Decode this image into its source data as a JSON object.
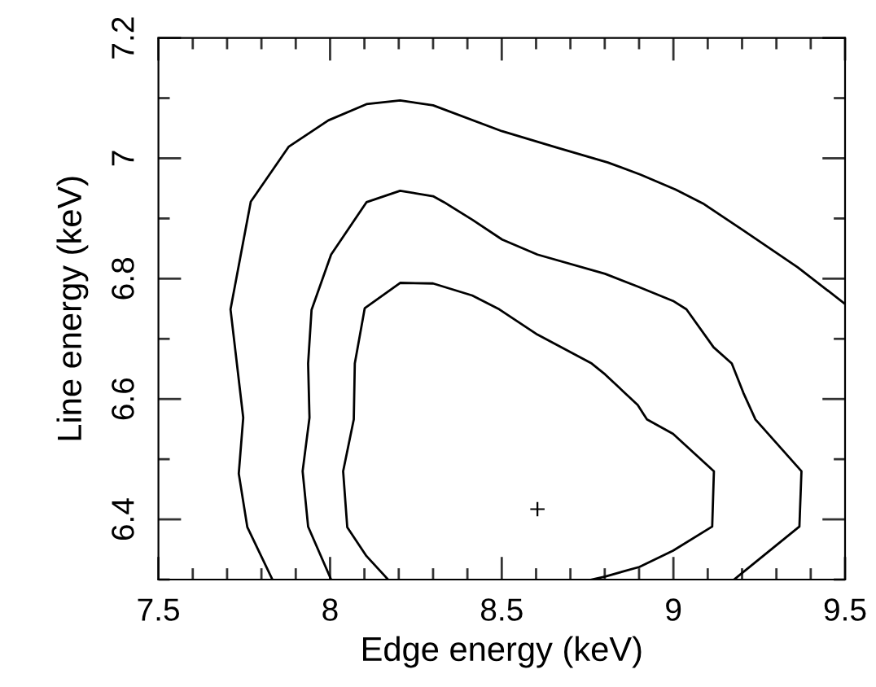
{
  "chart_data": {
    "type": "line",
    "xlabel": "Edge energy (keV)",
    "ylabel": "Line energy (keV)",
    "xlim": [
      7.5,
      9.5
    ],
    "ylim": [
      6.3,
      7.2
    ],
    "xticks": [
      7.5,
      {
        "value": 7.6,
        "label": null
      },
      {
        "value": 7.7,
        "label": null
      },
      {
        "value": 7.8,
        "label": null
      },
      {
        "value": 7.9,
        "label": null
      },
      8,
      {
        "value": 8.1,
        "label": null
      },
      {
        "value": 8.2,
        "label": null
      },
      {
        "value": 8.3,
        "label": null
      },
      {
        "value": 8.4,
        "label": null
      },
      8.5,
      {
        "value": 8.6,
        "label": null
      },
      {
        "value": 8.7,
        "label": null
      },
      {
        "value": 8.8,
        "label": null
      },
      {
        "value": 8.9,
        "label": null
      },
      9,
      {
        "value": 9.1,
        "label": null
      },
      {
        "value": 9.2,
        "label": null
      },
      {
        "value": 9.3,
        "label": null
      },
      {
        "value": 9.4,
        "label": null
      },
      9.5
    ],
    "yticks": [
      {
        "value": 6.3,
        "label": null
      },
      6.4,
      {
        "value": 6.5,
        "label": null
      },
      6.6,
      {
        "value": 6.7,
        "label": null
      },
      6.8,
      {
        "value": 6.9,
        "label": null
      },
      7,
      {
        "value": 7.1,
        "label": null
      },
      7.2
    ],
    "grid": false,
    "legend": false,
    "series": [
      {
        "color": "#000000",
        "x": [
          7.832,
          7.759,
          7.734,
          7.747,
          7.71,
          7.769,
          7.879,
          7.995,
          8.106,
          8.204,
          8.3,
          8.501,
          8.659,
          8.809,
          8.904,
          9.007,
          9.086,
          9.204,
          9.362,
          9.5
        ],
        "values": [
          6.3,
          6.387,
          6.476,
          6.569,
          6.749,
          6.928,
          7.019,
          7.063,
          7.09,
          7.096,
          7.088,
          7.045,
          7.018,
          6.993,
          6.973,
          6.948,
          6.925,
          6.88,
          6.819,
          6.758
        ]
      },
      {
        "color": "#000000",
        "x": [
          8.003,
          7.936,
          7.92,
          7.94,
          7.936,
          7.946,
          8.003,
          8.106,
          8.204,
          8.3,
          8.332,
          8.414,
          8.501,
          8.604,
          8.801,
          8.896,
          8.999,
          9.038,
          9.117,
          9.17,
          9.204,
          9.239,
          9.373,
          9.367,
          9.196,
          9.177
        ],
        "values": [
          6.3,
          6.388,
          6.48,
          6.569,
          6.659,
          6.748,
          6.84,
          6.927,
          6.946,
          6.937,
          6.927,
          6.898,
          6.865,
          6.84,
          6.808,
          6.787,
          6.763,
          6.749,
          6.686,
          6.659,
          6.61,
          6.566,
          6.48,
          6.388,
          6.309,
          6.3
        ]
      },
      {
        "color": "#000000",
        "x": [
          8.169,
          8.106,
          8.05,
          8.038,
          8.069,
          8.072,
          8.101,
          8.204,
          8.3,
          8.414,
          8.493,
          8.604,
          8.762,
          8.801,
          8.896,
          8.923,
          8.999,
          9.118,
          9.113,
          8.999,
          8.901,
          8.801,
          8.762
        ],
        "values": [
          6.3,
          6.339,
          6.387,
          6.48,
          6.566,
          6.659,
          6.751,
          6.793,
          6.792,
          6.772,
          6.749,
          6.707,
          6.659,
          6.641,
          6.59,
          6.566,
          6.542,
          6.48,
          6.388,
          6.348,
          6.321,
          6.305,
          6.3
        ]
      },
      {
        "type": "scatter",
        "color": "#000000",
        "marker": "cross",
        "x": [
          8.604
        ],
        "values": [
          6.417
        ]
      }
    ]
  }
}
